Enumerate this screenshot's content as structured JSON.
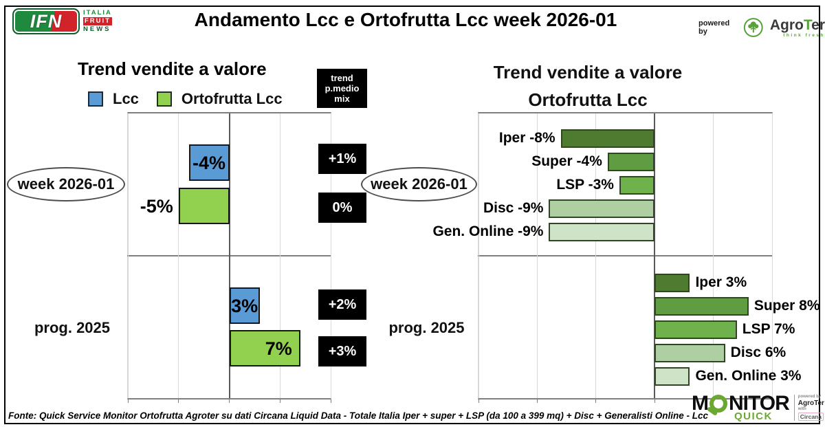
{
  "header": {
    "logo_ifn": {
      "abbr": "IFN",
      "lines": [
        "ITALIA",
        "FRUIT",
        "NEWS"
      ],
      "green": "#1f8a3e",
      "red": "#d2232a"
    },
    "title": "Andamento Lcc e Ortofrutta Lcc week 2026-01",
    "powered_by": "powered by",
    "agroter_parts": [
      "Agro",
      "T",
      "er"
    ],
    "agroter_tagline": "think fresh"
  },
  "left_extra": {
    "header_lines": [
      "trend",
      "p.medio",
      "mix"
    ]
  },
  "chart_data": [
    {
      "type": "bar",
      "orientation": "horizontal",
      "title": "Trend vendite a valore",
      "legend_position": "top",
      "grid": true,
      "axis_range": [
        -10,
        10
      ],
      "grid_step": 5,
      "extra_column_header": "trend p.medio mix",
      "series": [
        {
          "name": "Lcc",
          "color": "#5b9bd5"
        },
        {
          "name": "Ortofrutta Lcc",
          "color": "#92d050"
        }
      ],
      "groups": [
        {
          "category": "week 2026-01",
          "circled": true,
          "bars": [
            {
              "series": "Lcc",
              "value": -4,
              "label": "-4%",
              "trend_p_medio_mix": "+1%"
            },
            {
              "series": "Ortofrutta Lcc",
              "value": -5,
              "label": "-5%",
              "trend_p_medio_mix": "0%"
            }
          ]
        },
        {
          "category": "prog. 2025",
          "circled": false,
          "bars": [
            {
              "series": "Lcc",
              "value": 3,
              "label": "3%",
              "trend_p_medio_mix": "+2%"
            },
            {
              "series": "Ortofrutta Lcc",
              "value": 7,
              "label": "7%",
              "trend_p_medio_mix": "+3%"
            }
          ]
        }
      ]
    },
    {
      "type": "bar",
      "orientation": "horizontal",
      "title": "Trend vendite a valore Ortofrutta Lcc",
      "title_lines": [
        "Trend vendite a valore",
        "Ortofrutta Lcc"
      ],
      "grid": true,
      "axis_range": [
        -15,
        10
      ],
      "grid_step": 5,
      "groups": [
        {
          "category": "week 2026-01",
          "circled": true,
          "bars": [
            {
              "name": "Iper",
              "value": -8,
              "label": "Iper -8%",
              "color": "#4e7b30"
            },
            {
              "name": "Super",
              "value": -4,
              "label": "Super -4%",
              "color": "#5f9c42"
            },
            {
              "name": "LSP",
              "value": -3,
              "label": "LSP -3%",
              "color": "#6fb14a"
            },
            {
              "name": "Disc",
              "value": -9,
              "label": "Disc -9%",
              "color": "#aecfa2"
            },
            {
              "name": "Gen. Online",
              "value": -9,
              "label": "Gen. Online -9%",
              "color": "#cfe3c6"
            }
          ]
        },
        {
          "category": "prog. 2025",
          "circled": false,
          "bars": [
            {
              "name": "Iper",
              "value": 3,
              "label": "Iper 3%",
              "color": "#4e7b30"
            },
            {
              "name": "Super",
              "value": 8,
              "label": "Super 8%",
              "color": "#5f9c42"
            },
            {
              "name": "LSP",
              "value": 7,
              "label": "LSP 7%",
              "color": "#6fb14a"
            },
            {
              "name": "Disc",
              "value": 6,
              "label": "Disc 6%",
              "color": "#aecfa2"
            },
            {
              "name": "Gen. Online",
              "value": 3,
              "label": "Gen. Online 3%",
              "color": "#cfe3c6"
            }
          ]
        }
      ]
    }
  ],
  "footer": {
    "fonte": "Fonte: Quick Service Monitor Ortofrutta Agroter su dati Circana Liquid Data - Totale Italia Iper + super + LSP (da 100 a 399 mq) + Disc + Generalisti Online - Lcc",
    "monitor": {
      "pre": "M",
      "post": "NITOR",
      "quick": "QUICK",
      "powered_by": "powered by",
      "agroter": "AgroTer",
      "with_word": "with",
      "circana": "Circana"
    }
  },
  "colors": {
    "lcc_blue": "#5b9bd5",
    "ortofrutta_green": "#92d050",
    "black_box": "#000000",
    "monitor_green": "#6aa832",
    "agroter_green": "#5aa13c"
  }
}
